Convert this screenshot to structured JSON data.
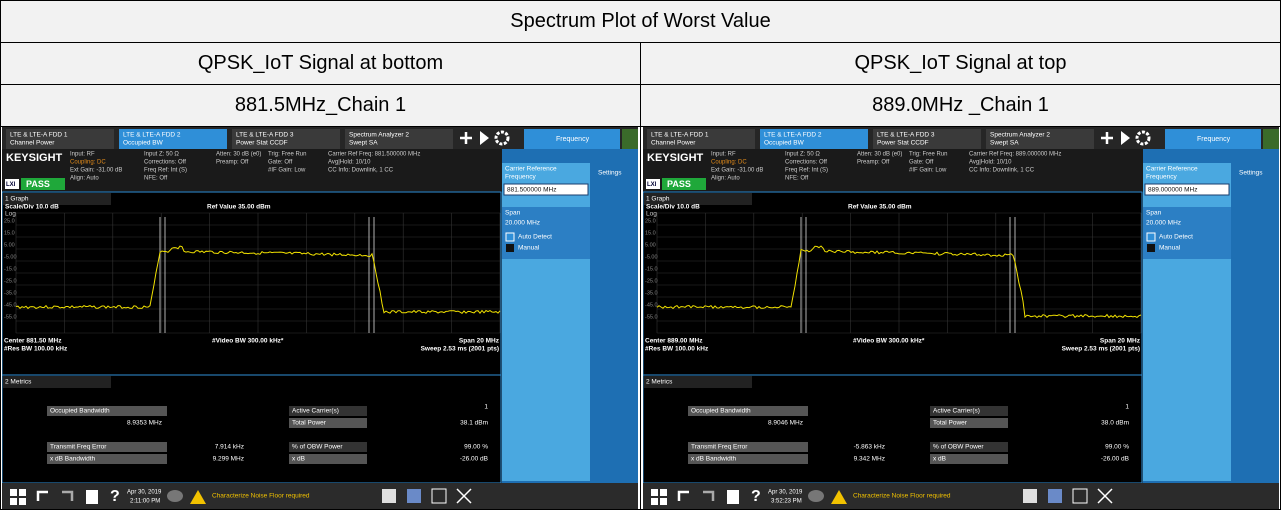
{
  "title": "Spectrum Plot of Worst Value",
  "columns": [
    {
      "heading": "QPSK_IoT Signal at bottom",
      "subheading": "881.5MHz_Chain 1",
      "screen": {
        "tabs": [
          {
            "line1": "LTE & LTE-A FDD 1",
            "line2": "Channel Power"
          },
          {
            "line1": "LTE & LTE-A FDD 2",
            "line2": "Occupied BW"
          },
          {
            "line1": "LTE & LTE-A FDD 3",
            "line2": "Power Stat CCDF"
          },
          {
            "line1": "Spectrum Analyzer 2",
            "line2": "Swept SA"
          }
        ],
        "menu": "Frequency",
        "brand": "KEYSIGHT",
        "lxi": "LXI",
        "status": "PASS",
        "info": [
          [
            "Input: RF",
            "Coupling: DC",
            "Ext Gain: -31.00 dB",
            "Align: Auto"
          ],
          [
            "Input Z: 50 Ω",
            "Corrections: Off",
            "Freq Ref: Int (S)",
            "NFE: Off"
          ],
          [
            "Atten: 30 dB (e0)",
            "Preamp: Off"
          ],
          [
            "Trig: Free Run",
            "Gate: Off",
            "#IF Gain: Low"
          ],
          [
            "Carrier Ref Freq: 881.500000 MHz",
            "Avg|Hold: 10/10",
            "CC Info: Downlink, 1 CC"
          ]
        ],
        "carrier_ref_label": [
          "Carrier Reference",
          "Frequency"
        ],
        "carrier_ref_value": "881.500000 MHz",
        "settings": "Settings",
        "span_label": "Span",
        "span_value": "20.000 MHz",
        "auto": "Auto Detect",
        "manual": "Manual",
        "graph_label": "1 Graph",
        "scale": "Scale/Div 10.0 dB",
        "ref": "Ref Value 35.00 dBm",
        "log": "Log",
        "y_labels": [
          "25.0",
          "15.0",
          "5.00",
          "-5.00",
          "-15.0",
          "-25.0",
          "-35.0",
          "-45.0",
          "-55.0"
        ],
        "center": "Center 881.50 MHz",
        "res_bw": "#Res BW 100.00 kHz",
        "video_bw": "#Video BW 300.00 kHz*",
        "span": "Span 20 MHz",
        "sweep": "Sweep 2.53 ms (2001 pts)",
        "metrics_label": "2 Metrics",
        "metrics_left": [
          {
            "label": "Occupied Bandwidth",
            "value": "8.9353 MHz"
          },
          {
            "label": "Transmit Freq Error",
            "value": "7.914 kHz"
          },
          {
            "label": "x dB Bandwidth",
            "value": "9.299 MHz"
          }
        ],
        "metrics_right": [
          {
            "label": "Active Carrier(s)",
            "value": "1"
          },
          {
            "label": "Total Power",
            "value": "38.1 dBm"
          },
          {
            "label": "% of OBW Power",
            "value": "99.00 %"
          },
          {
            "label": "x dB",
            "value": "-26.00 dB"
          }
        ],
        "help": "?",
        "date": "Apr 30, 2019",
        "time": "2:11:00 PM",
        "notice": "Characterize Noise Floor required"
      }
    },
    {
      "heading": "QPSK_IoT Signal at top",
      "subheading": "889.0MHz _Chain 1",
      "screen": {
        "tabs": [
          {
            "line1": "LTE & LTE-A FDD 1",
            "line2": "Channel Power"
          },
          {
            "line1": "LTE & LTE-A FDD 2",
            "line2": "Occupied BW"
          },
          {
            "line1": "LTE & LTE-A FDD 3",
            "line2": "Power Stat CCDF"
          },
          {
            "line1": "Spectrum Analyzer 2",
            "line2": "Swept SA"
          }
        ],
        "menu": "Frequency",
        "brand": "KEYSIGHT",
        "lxi": "LXI",
        "status": "PASS",
        "info": [
          [
            "Input: RF",
            "Coupling: DC",
            "Ext Gain: -31.00 dB",
            "Align: Auto"
          ],
          [
            "Input Z: 50 Ω",
            "Corrections: Off",
            "Freq Ref: Int (S)",
            "NFE: Off"
          ],
          [
            "Atten: 30 dB (e0)",
            "Preamp: Off"
          ],
          [
            "Trig: Free Run",
            "Gate: Off",
            "#IF Gain: Low"
          ],
          [
            "Carrier Ref Freq: 889.000000 MHz",
            "Avg|Hold: 10/10",
            "CC Info: Downlink, 1 CC"
          ]
        ],
        "carrier_ref_label": [
          "Carrier Reference",
          "Frequency"
        ],
        "carrier_ref_value": "889.000000 MHz",
        "settings": "Settings",
        "span_label": "Span",
        "span_value": "20.000 MHz",
        "auto": "Auto Detect",
        "manual": "Manual",
        "graph_label": "1 Graph",
        "scale": "Scale/Div 10.0 dB",
        "ref": "Ref Value 35.00 dBm",
        "log": "Log",
        "y_labels": [
          "25.0",
          "15.0",
          "5.00",
          "-5.00",
          "-15.0",
          "-25.0",
          "-35.0",
          "-45.0",
          "-55.0"
        ],
        "center": "Center 889.00 MHz",
        "res_bw": "#Res BW 100.00 kHz",
        "video_bw": "#Video BW 300.00 kHz*",
        "span": "Span 20 MHz",
        "sweep": "Sweep 2.53 ms (2001 pts)",
        "metrics_label": "2 Metrics",
        "metrics_left": [
          {
            "label": "Occupied Bandwidth",
            "value": "8.9046 MHz"
          },
          {
            "label": "Transmit Freq Error",
            "value": "-5.863 kHz"
          },
          {
            "label": "x dB Bandwidth",
            "value": "9.342 MHz"
          }
        ],
        "metrics_right": [
          {
            "label": "Active Carrier(s)",
            "value": "1"
          },
          {
            "label": "Total Power",
            "value": "38.0 dBm"
          },
          {
            "label": "% of OBW Power",
            "value": "99.00 %"
          },
          {
            "label": "x dB",
            "value": "-26.00 dB"
          }
        ],
        "help": "?",
        "date": "Apr 30, 2019",
        "time": "3:52:23 PM",
        "notice": "Characterize Noise Floor required"
      }
    }
  ]
}
